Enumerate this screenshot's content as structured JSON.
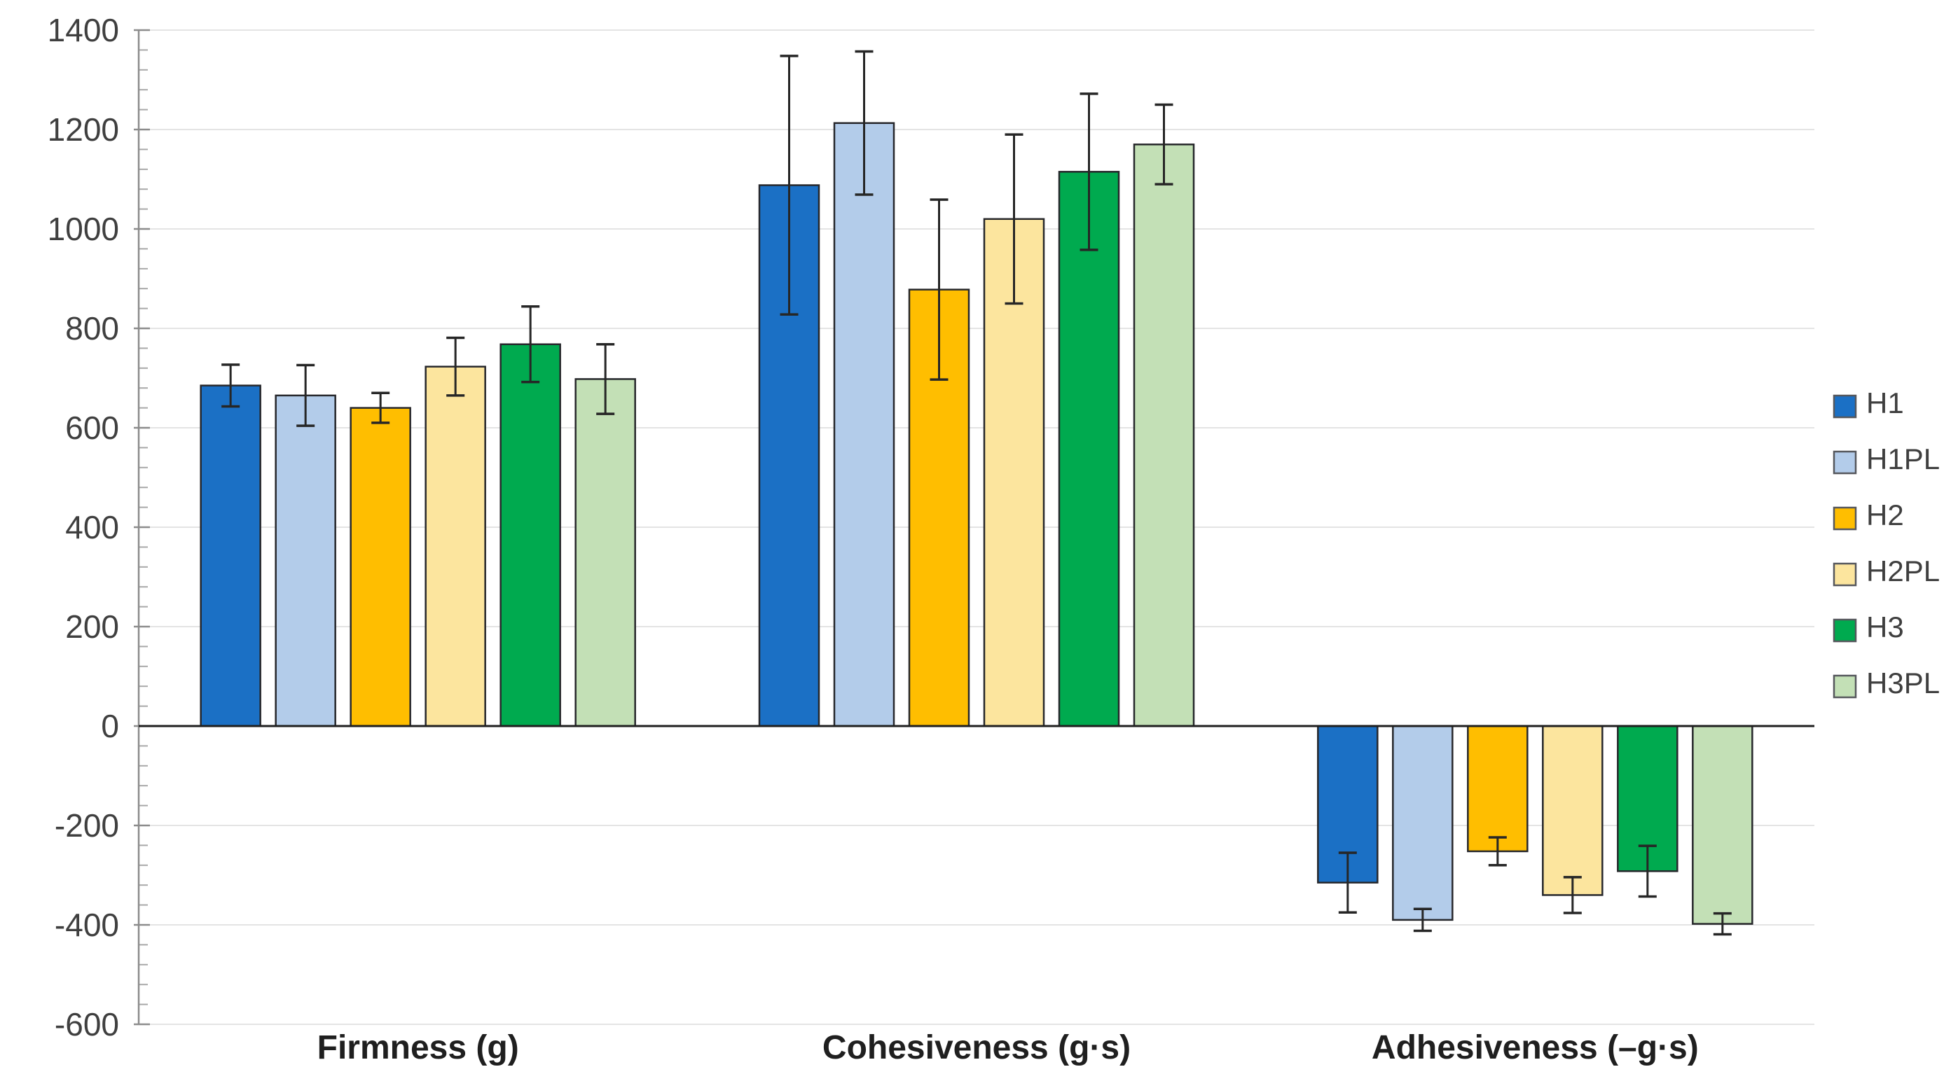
{
  "chart_data": {
    "type": "bar",
    "title": "",
    "xlabel": "",
    "ylabel": "",
    "categories": [
      "Firmness (g)",
      "Cohesiveness (g·s)",
      "Adhesiveness (–g·s)"
    ],
    "series": [
      {
        "name": "H1",
        "color": "#1B70C5",
        "values": [
          685,
          1088,
          -315
        ],
        "errors": [
          42,
          260,
          60
        ]
      },
      {
        "name": "H1PL",
        "color": "#B3CCEA",
        "values": [
          665,
          1213,
          -390
        ],
        "errors": [
          61,
          144,
          22
        ]
      },
      {
        "name": "H2",
        "color": "#FFBE00",
        "values": [
          640,
          878,
          -252
        ],
        "errors": [
          30,
          181,
          28
        ]
      },
      {
        "name": "H2PL",
        "color": "#FCE59E",
        "values": [
          723,
          1020,
          -340
        ],
        "errors": [
          58,
          170,
          36
        ]
      },
      {
        "name": "H3",
        "color": "#00AA4F",
        "values": [
          768,
          1115,
          -292
        ],
        "errors": [
          76,
          157,
          51
        ]
      },
      {
        "name": "H3PL",
        "color": "#C3E0B6",
        "values": [
          698,
          1170,
          -398
        ],
        "errors": [
          70,
          80,
          21
        ]
      }
    ],
    "ylim": [
      -600,
      1400
    ],
    "ytick_step": 200,
    "yminor_step": 40,
    "ytick_labels": [
      "1400",
      "1200",
      "1000",
      "800",
      "600",
      "400",
      "200",
      "0",
      "-200",
      "-400",
      "-600"
    ],
    "grid": true,
    "legend_position": "right",
    "legend_items": [
      "H1",
      "H1PL",
      "H2",
      "H2PL",
      "H3",
      "H3PL"
    ]
  },
  "colors": {
    "background": "#FFFFFF",
    "gridline": "#E4E4E4",
    "axis_line": "#8C8C8C",
    "zero_line": "#1F1F1F",
    "bar_border": "#26272B",
    "error_bar": "#262626",
    "tick_text": "#3F3F3F",
    "category_text": "#1F1F1F",
    "legend_text": "#3F3F3F",
    "legend_swatch_border": "#55575C"
  }
}
